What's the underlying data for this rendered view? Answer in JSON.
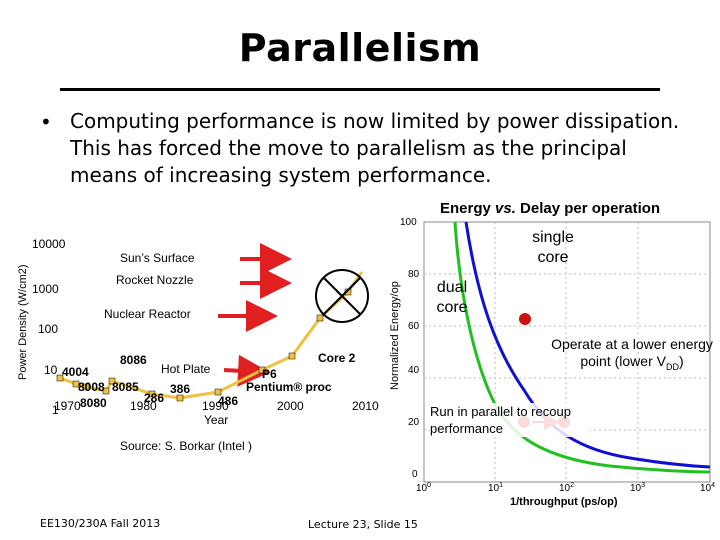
{
  "slide": {
    "title": "Parallelism",
    "bullet": "Computing performance is now limited by power dissipation. This has forced the move to parallelism as the principal means of increasing system performance.",
    "footer_left": "EE130/230A Fall 2013",
    "footer_center": "Lecture 23, Slide 15"
  },
  "left_chart": {
    "ylabel": "Power Density (W/cm2)",
    "y_ticks": [
      "10000",
      "1000",
      "100",
      "10",
      "1"
    ],
    "x_ticks": [
      "1970",
      "1980",
      "1990",
      "2000",
      "2010"
    ],
    "xlabel_extra": "Year",
    "references": [
      "Sun’s Surface",
      "Rocket Nozzle",
      "Nuclear Reactor",
      "Hot Plate"
    ],
    "chips": [
      "4004",
      "8008",
      "8085",
      "8080",
      "8086",
      "286",
      "386",
      "486",
      "P6",
      "Pentium® proc",
      "Core 2"
    ],
    "source": "Source: S. Borkar (Intel )",
    "arrow_color": "#e02020",
    "line_color": "#f0c040"
  },
  "right_chart": {
    "title_prefix": "Energy ",
    "title_vs": "vs.",
    "title_suffix": " Delay per operation",
    "ylabel": "Normalized Energy/op",
    "y_ticks": [
      "100",
      "80",
      "60",
      "40",
      "20",
      "0"
    ],
    "x_base": "10",
    "x_exps": [
      "0",
      "1",
      "2",
      "3",
      "4"
    ],
    "xlabel": "1/throughput (ps/op)",
    "single_core_label": "single core",
    "dual_core_label": "dual core",
    "annotation_operate": "Operate at a lower energy point (lower V",
    "annotation_operate_sub": "DD",
    "annotation_operate_end": ")",
    "annotation_parallel": "Run in parallel to recoup performance",
    "single_color": "#1010d0",
    "dual_color": "#20c020",
    "marker_color": "#cc1010"
  }
}
